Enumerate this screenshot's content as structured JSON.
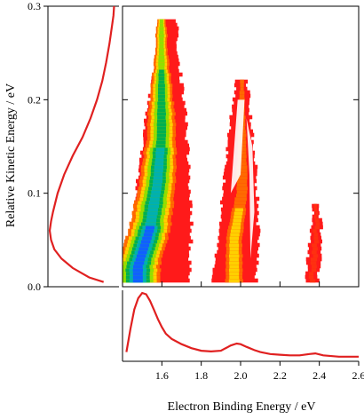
{
  "chart_data": [
    {
      "type": "heatmap",
      "xlabel": "",
      "ylabel": "Relative Kinetic Energy / eV",
      "xlim": [
        1.4,
        2.6
      ],
      "ylim": [
        0.0,
        0.3
      ],
      "yticks": [
        "0.0",
        "0.1",
        "0.2",
        "0.3"
      ],
      "colorscale": [
        "#ff1a1a",
        "#ff6a00",
        "#ffd000",
        "#90e000",
        "#00b050",
        "#00b0b0",
        "#1060ff"
      ],
      "bands": [
        {
          "name": "band-1",
          "left_edge": [
            [
              1.42,
              0.005
            ],
            [
              1.45,
              0.06
            ],
            [
              1.48,
              0.12
            ],
            [
              1.52,
              0.18
            ],
            [
              1.57,
              0.24
            ],
            [
              1.61,
              0.285
            ]
          ],
          "right_edge": [
            [
              1.67,
              0.29
            ],
            [
              1.69,
              0.24
            ],
            [
              1.72,
              0.18
            ],
            [
              1.74,
              0.12
            ],
            [
              1.75,
              0.06
            ],
            [
              1.74,
              0.005
            ]
          ],
          "core": [
            [
              1.46,
              0.02
            ],
            [
              1.52,
              0.06
            ],
            [
              1.56,
              0.11
            ],
            [
              1.58,
              0.16
            ]
          ],
          "peak_intensity": 1.0
        },
        {
          "name": "band-2",
          "left_edge": [
            [
              1.86,
              0.005
            ],
            [
              1.89,
              0.06
            ],
            [
              1.92,
              0.12
            ],
            [
              1.95,
              0.18
            ],
            [
              1.98,
              0.22
            ]
          ],
          "right_edge": [
            [
              2.03,
              0.22
            ],
            [
              2.06,
              0.17
            ],
            [
              2.08,
              0.12
            ],
            [
              2.09,
              0.06
            ],
            [
              2.08,
              0.005
            ]
          ],
          "core": [
            [
              1.94,
              0.05
            ],
            [
              1.98,
              0.1
            ]
          ],
          "peak_intensity": 0.3
        },
        {
          "name": "band-3",
          "left_edge": [
            [
              2.33,
              0.005
            ],
            [
              2.34,
              0.03
            ],
            [
              2.36,
              0.06
            ],
            [
              2.37,
              0.085
            ]
          ],
          "right_edge": [
            [
              2.4,
              0.09
            ],
            [
              2.41,
              0.06
            ],
            [
              2.41,
              0.03
            ],
            [
              2.39,
              0.005
            ]
          ],
          "core": [],
          "peak_intensity": 0.1
        }
      ]
    },
    {
      "type": "line",
      "xlabel": "",
      "ylabel": "",
      "ylim": [
        0.0,
        0.3
      ],
      "orientation": "vertical",
      "color": "#e02020",
      "series": [
        {
          "y": [
            0.005,
            0.01,
            0.02,
            0.03,
            0.04,
            0.05,
            0.06,
            0.07,
            0.08,
            0.1,
            0.12,
            0.14,
            0.16,
            0.18,
            0.2,
            0.22,
            0.24,
            0.26,
            0.28,
            0.29,
            0.3
          ],
          "x": [
            0.82,
            0.6,
            0.35,
            0.18,
            0.07,
            0.02,
            0.0,
            0.02,
            0.05,
            0.12,
            0.22,
            0.35,
            0.5,
            0.62,
            0.72,
            0.8,
            0.86,
            0.91,
            0.95,
            0.97,
            0.98
          ]
        }
      ]
    },
    {
      "type": "line",
      "xlabel": "Electron Binding Energy / eV",
      "ylabel": "",
      "xlim": [
        1.4,
        2.6
      ],
      "xticks": [
        "1.6",
        "1.8",
        "2.0",
        "2.2",
        "2.4",
        "2.6"
      ],
      "color": "#e02020",
      "series": [
        {
          "x": [
            1.42,
            1.44,
            1.46,
            1.48,
            1.5,
            1.52,
            1.54,
            1.56,
            1.58,
            1.6,
            1.62,
            1.65,
            1.7,
            1.75,
            1.8,
            1.85,
            1.9,
            1.95,
            1.98,
            2.0,
            2.03,
            2.07,
            2.1,
            2.15,
            2.2,
            2.25,
            2.3,
            2.35,
            2.38,
            2.42,
            2.5,
            2.6
          ],
          "y": [
            0.1,
            0.45,
            0.75,
            0.92,
            1.0,
            0.98,
            0.88,
            0.74,
            0.6,
            0.48,
            0.38,
            0.3,
            0.22,
            0.16,
            0.12,
            0.11,
            0.12,
            0.2,
            0.23,
            0.22,
            0.18,
            0.13,
            0.1,
            0.07,
            0.06,
            0.05,
            0.05,
            0.07,
            0.08,
            0.05,
            0.03,
            0.03
          ]
        }
      ]
    }
  ]
}
